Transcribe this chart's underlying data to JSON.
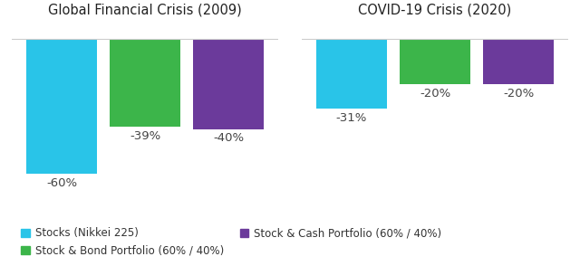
{
  "title_left": "Global Financial Crisis (2009)",
  "title_right": "COVID-19 Crisis (2020)",
  "values_2009": [
    -60,
    -39,
    -40
  ],
  "values_2020": [
    -31,
    -20,
    -20
  ],
  "labels_2009": [
    "-60%",
    "-39%",
    "-40%"
  ],
  "labels_2020": [
    "-31%",
    "-20%",
    "-20%"
  ],
  "colors": [
    "#29C4E8",
    "#3CB54A",
    "#6B3A9B"
  ],
  "ylim": [
    -75,
    8
  ],
  "background_color": "#ffffff",
  "legend_labels": [
    "Stocks (Nikkei 225)",
    "Stock & Bond Portfolio (60% / 40%)",
    "Stock & Cash Portfolio (60% / 40%)"
  ],
  "title_fontsize": 10.5,
  "label_fontsize": 9.5,
  "legend_fontsize": 8.5
}
